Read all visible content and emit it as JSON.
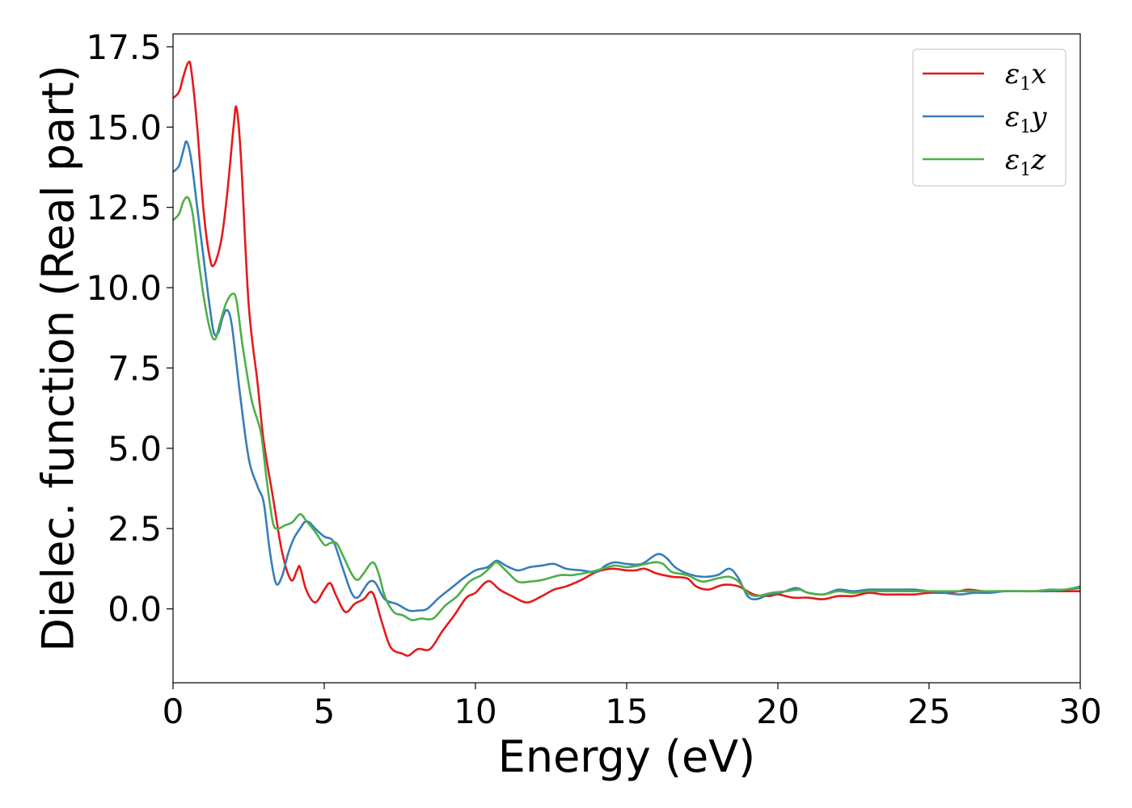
{
  "chart_data": {
    "type": "line",
    "xlabel": "Energy (eV)",
    "ylabel": "Dielec. function (Real part)",
    "xlim": [
      0,
      30
    ],
    "ylim": [
      -2.3,
      17.9
    ],
    "xticks": [
      "0",
      "5",
      "10",
      "15",
      "20",
      "25",
      "30"
    ],
    "yticks": [
      "0.0",
      "2.5",
      "5.0",
      "7.5",
      "10.0",
      "12.5",
      "15.0",
      "17.5"
    ],
    "legend_position": "top-right",
    "grid": false,
    "series": [
      {
        "name": "ε1x",
        "symbol": "ε",
        "sub": "1",
        "axis": "x",
        "color": "#e41a1c",
        "points": [
          [
            0,
            15.9
          ],
          [
            0.2,
            16.1
          ],
          [
            0.35,
            16.6
          ],
          [
            0.5,
            17.0
          ],
          [
            0.6,
            16.8
          ],
          [
            0.8,
            15.0
          ],
          [
            1.0,
            12.5
          ],
          [
            1.2,
            11.0
          ],
          [
            1.35,
            10.7
          ],
          [
            1.6,
            11.5
          ],
          [
            1.8,
            13.0
          ],
          [
            2.0,
            15.0
          ],
          [
            2.1,
            15.6
          ],
          [
            2.25,
            14.0
          ],
          [
            2.5,
            9.5
          ],
          [
            2.8,
            7.0
          ],
          [
            3.0,
            5.2
          ],
          [
            3.3,
            3.5
          ],
          [
            3.6,
            1.8
          ],
          [
            3.9,
            0.9
          ],
          [
            4.1,
            1.2
          ],
          [
            4.2,
            1.3
          ],
          [
            4.4,
            0.6
          ],
          [
            4.7,
            0.2
          ],
          [
            5.0,
            0.6
          ],
          [
            5.2,
            0.8
          ],
          [
            5.4,
            0.4
          ],
          [
            5.7,
            -0.1
          ],
          [
            6.0,
            0.15
          ],
          [
            6.3,
            0.3
          ],
          [
            6.6,
            0.5
          ],
          [
            6.9,
            -0.4
          ],
          [
            7.2,
            -1.2
          ],
          [
            7.6,
            -1.4
          ],
          [
            7.8,
            -1.45
          ],
          [
            8.1,
            -1.25
          ],
          [
            8.5,
            -1.25
          ],
          [
            8.9,
            -0.7
          ],
          [
            9.3,
            -0.2
          ],
          [
            9.7,
            0.35
          ],
          [
            10.0,
            0.5
          ],
          [
            10.3,
            0.8
          ],
          [
            10.5,
            0.85
          ],
          [
            10.8,
            0.6
          ],
          [
            11.2,
            0.4
          ],
          [
            11.7,
            0.2
          ],
          [
            12.2,
            0.4
          ],
          [
            12.6,
            0.6
          ],
          [
            13.0,
            0.7
          ],
          [
            13.5,
            0.9
          ],
          [
            14.0,
            1.15
          ],
          [
            14.5,
            1.25
          ],
          [
            15.0,
            1.2
          ],
          [
            15.3,
            1.2
          ],
          [
            15.6,
            1.25
          ],
          [
            16.0,
            1.1
          ],
          [
            16.5,
            1.0
          ],
          [
            17.0,
            0.95
          ],
          [
            17.3,
            0.7
          ],
          [
            17.7,
            0.6
          ],
          [
            18.2,
            0.75
          ],
          [
            18.7,
            0.7
          ],
          [
            19.2,
            0.45
          ],
          [
            19.7,
            0.4
          ],
          [
            20.0,
            0.45
          ],
          [
            20.5,
            0.35
          ],
          [
            21.0,
            0.35
          ],
          [
            21.5,
            0.3
          ],
          [
            22.0,
            0.4
          ],
          [
            22.5,
            0.4
          ],
          [
            23.0,
            0.5
          ],
          [
            23.5,
            0.45
          ],
          [
            24.0,
            0.45
          ],
          [
            24.5,
            0.45
          ],
          [
            25.0,
            0.5
          ],
          [
            25.5,
            0.5
          ],
          [
            26.0,
            0.55
          ],
          [
            26.3,
            0.6
          ],
          [
            26.8,
            0.55
          ],
          [
            27.3,
            0.55
          ],
          [
            28.0,
            0.55
          ],
          [
            28.5,
            0.55
          ],
          [
            29.0,
            0.55
          ],
          [
            30.0,
            0.55
          ]
        ]
      },
      {
        "name": "ε1y",
        "symbol": "ε",
        "sub": "1",
        "axis": "y",
        "color": "#377eb8",
        "points": [
          [
            0,
            13.6
          ],
          [
            0.2,
            13.8
          ],
          [
            0.35,
            14.3
          ],
          [
            0.45,
            14.55
          ],
          [
            0.6,
            14.0
          ],
          [
            0.8,
            12.5
          ],
          [
            1.0,
            11.0
          ],
          [
            1.2,
            9.5
          ],
          [
            1.35,
            8.6
          ],
          [
            1.5,
            8.6
          ],
          [
            1.65,
            9.1
          ],
          [
            1.8,
            9.3
          ],
          [
            1.95,
            8.8
          ],
          [
            2.2,
            6.8
          ],
          [
            2.5,
            4.7
          ],
          [
            2.8,
            3.8
          ],
          [
            3.0,
            3.3
          ],
          [
            3.2,
            1.8
          ],
          [
            3.4,
            0.8
          ],
          [
            3.6,
            1.0
          ],
          [
            3.8,
            1.7
          ],
          [
            4.0,
            2.2
          ],
          [
            4.2,
            2.5
          ],
          [
            4.35,
            2.7
          ],
          [
            4.5,
            2.7
          ],
          [
            4.7,
            2.5
          ],
          [
            5.0,
            2.25
          ],
          [
            5.3,
            2.1
          ],
          [
            5.6,
            1.3
          ],
          [
            5.9,
            0.5
          ],
          [
            6.1,
            0.35
          ],
          [
            6.3,
            0.6
          ],
          [
            6.5,
            0.85
          ],
          [
            6.7,
            0.8
          ],
          [
            7.0,
            0.3
          ],
          [
            7.4,
            0.15
          ],
          [
            7.8,
            -0.05
          ],
          [
            8.1,
            -0.05
          ],
          [
            8.4,
            0.0
          ],
          [
            8.8,
            0.35
          ],
          [
            9.2,
            0.65
          ],
          [
            9.6,
            0.95
          ],
          [
            10.0,
            1.2
          ],
          [
            10.4,
            1.3
          ],
          [
            10.7,
            1.5
          ],
          [
            11.0,
            1.35
          ],
          [
            11.4,
            1.2
          ],
          [
            11.8,
            1.3
          ],
          [
            12.2,
            1.35
          ],
          [
            12.6,
            1.4
          ],
          [
            13.0,
            1.25
          ],
          [
            13.5,
            1.2
          ],
          [
            14.0,
            1.15
          ],
          [
            14.3,
            1.35
          ],
          [
            14.6,
            1.45
          ],
          [
            15.0,
            1.4
          ],
          [
            15.5,
            1.4
          ],
          [
            16.0,
            1.7
          ],
          [
            16.3,
            1.6
          ],
          [
            16.6,
            1.3
          ],
          [
            17.0,
            1.1
          ],
          [
            17.5,
            1.0
          ],
          [
            18.0,
            1.05
          ],
          [
            18.4,
            1.25
          ],
          [
            18.7,
            0.95
          ],
          [
            19.0,
            0.4
          ],
          [
            19.3,
            0.3
          ],
          [
            19.7,
            0.45
          ],
          [
            20.1,
            0.5
          ],
          [
            20.6,
            0.65
          ],
          [
            21.0,
            0.5
          ],
          [
            21.5,
            0.45
          ],
          [
            22.0,
            0.6
          ],
          [
            22.5,
            0.55
          ],
          [
            23.0,
            0.6
          ],
          [
            23.5,
            0.6
          ],
          [
            24.0,
            0.6
          ],
          [
            24.5,
            0.6
          ],
          [
            25.0,
            0.55
          ],
          [
            25.5,
            0.5
          ],
          [
            26.0,
            0.45
          ],
          [
            26.5,
            0.5
          ],
          [
            27.0,
            0.5
          ],
          [
            27.5,
            0.55
          ],
          [
            28.0,
            0.55
          ],
          [
            28.5,
            0.55
          ],
          [
            29.0,
            0.55
          ],
          [
            29.5,
            0.6
          ],
          [
            30.0,
            0.65
          ]
        ]
      },
      {
        "name": "ε1z",
        "symbol": "ε",
        "sub": "1",
        "axis": "z",
        "color": "#4daf4a",
        "points": [
          [
            0,
            12.1
          ],
          [
            0.2,
            12.3
          ],
          [
            0.35,
            12.7
          ],
          [
            0.5,
            12.8
          ],
          [
            0.65,
            12.3
          ],
          [
            0.85,
            10.8
          ],
          [
            1.05,
            9.5
          ],
          [
            1.25,
            8.6
          ],
          [
            1.4,
            8.4
          ],
          [
            1.55,
            8.9
          ],
          [
            1.75,
            9.5
          ],
          [
            1.95,
            9.8
          ],
          [
            2.1,
            9.6
          ],
          [
            2.3,
            8.2
          ],
          [
            2.6,
            6.5
          ],
          [
            2.9,
            5.5
          ],
          [
            3.1,
            4.0
          ],
          [
            3.3,
            2.7
          ],
          [
            3.45,
            2.5
          ],
          [
            3.7,
            2.6
          ],
          [
            3.95,
            2.7
          ],
          [
            4.2,
            2.95
          ],
          [
            4.4,
            2.75
          ],
          [
            4.7,
            2.4
          ],
          [
            5.0,
            2.0
          ],
          [
            5.2,
            2.05
          ],
          [
            5.4,
            2.05
          ],
          [
            5.6,
            1.7
          ],
          [
            5.9,
            1.1
          ],
          [
            6.1,
            0.9
          ],
          [
            6.3,
            1.1
          ],
          [
            6.6,
            1.45
          ],
          [
            6.8,
            1.1
          ],
          [
            7.0,
            0.4
          ],
          [
            7.3,
            -0.1
          ],
          [
            7.6,
            -0.2
          ],
          [
            7.9,
            -0.35
          ],
          [
            8.2,
            -0.3
          ],
          [
            8.6,
            -0.3
          ],
          [
            9.0,
            0.1
          ],
          [
            9.4,
            0.4
          ],
          [
            9.8,
            0.85
          ],
          [
            10.2,
            1.05
          ],
          [
            10.5,
            1.3
          ],
          [
            10.7,
            1.45
          ],
          [
            11.0,
            1.2
          ],
          [
            11.4,
            0.85
          ],
          [
            11.8,
            0.85
          ],
          [
            12.2,
            0.9
          ],
          [
            12.8,
            1.05
          ],
          [
            13.2,
            1.05
          ],
          [
            13.8,
            1.15
          ],
          [
            14.2,
            1.25
          ],
          [
            14.6,
            1.35
          ],
          [
            15.0,
            1.3
          ],
          [
            15.4,
            1.35
          ],
          [
            15.9,
            1.45
          ],
          [
            16.2,
            1.4
          ],
          [
            16.5,
            1.15
          ],
          [
            17.0,
            1.05
          ],
          [
            17.5,
            0.85
          ],
          [
            18.0,
            0.95
          ],
          [
            18.4,
            1.0
          ],
          [
            18.7,
            0.85
          ],
          [
            19.0,
            0.5
          ],
          [
            19.3,
            0.4
          ],
          [
            19.8,
            0.5
          ],
          [
            20.3,
            0.55
          ],
          [
            20.7,
            0.6
          ],
          [
            21.0,
            0.5
          ],
          [
            21.5,
            0.45
          ],
          [
            22.0,
            0.55
          ],
          [
            22.5,
            0.5
          ],
          [
            23.0,
            0.55
          ],
          [
            23.5,
            0.55
          ],
          [
            24.0,
            0.55
          ],
          [
            24.5,
            0.55
          ],
          [
            25.0,
            0.55
          ],
          [
            25.5,
            0.55
          ],
          [
            26.0,
            0.55
          ],
          [
            26.5,
            0.55
          ],
          [
            27.0,
            0.55
          ],
          [
            27.5,
            0.55
          ],
          [
            28.0,
            0.55
          ],
          [
            28.5,
            0.55
          ],
          [
            29.0,
            0.6
          ],
          [
            29.5,
            0.6
          ],
          [
            30.0,
            0.7
          ]
        ]
      }
    ]
  }
}
